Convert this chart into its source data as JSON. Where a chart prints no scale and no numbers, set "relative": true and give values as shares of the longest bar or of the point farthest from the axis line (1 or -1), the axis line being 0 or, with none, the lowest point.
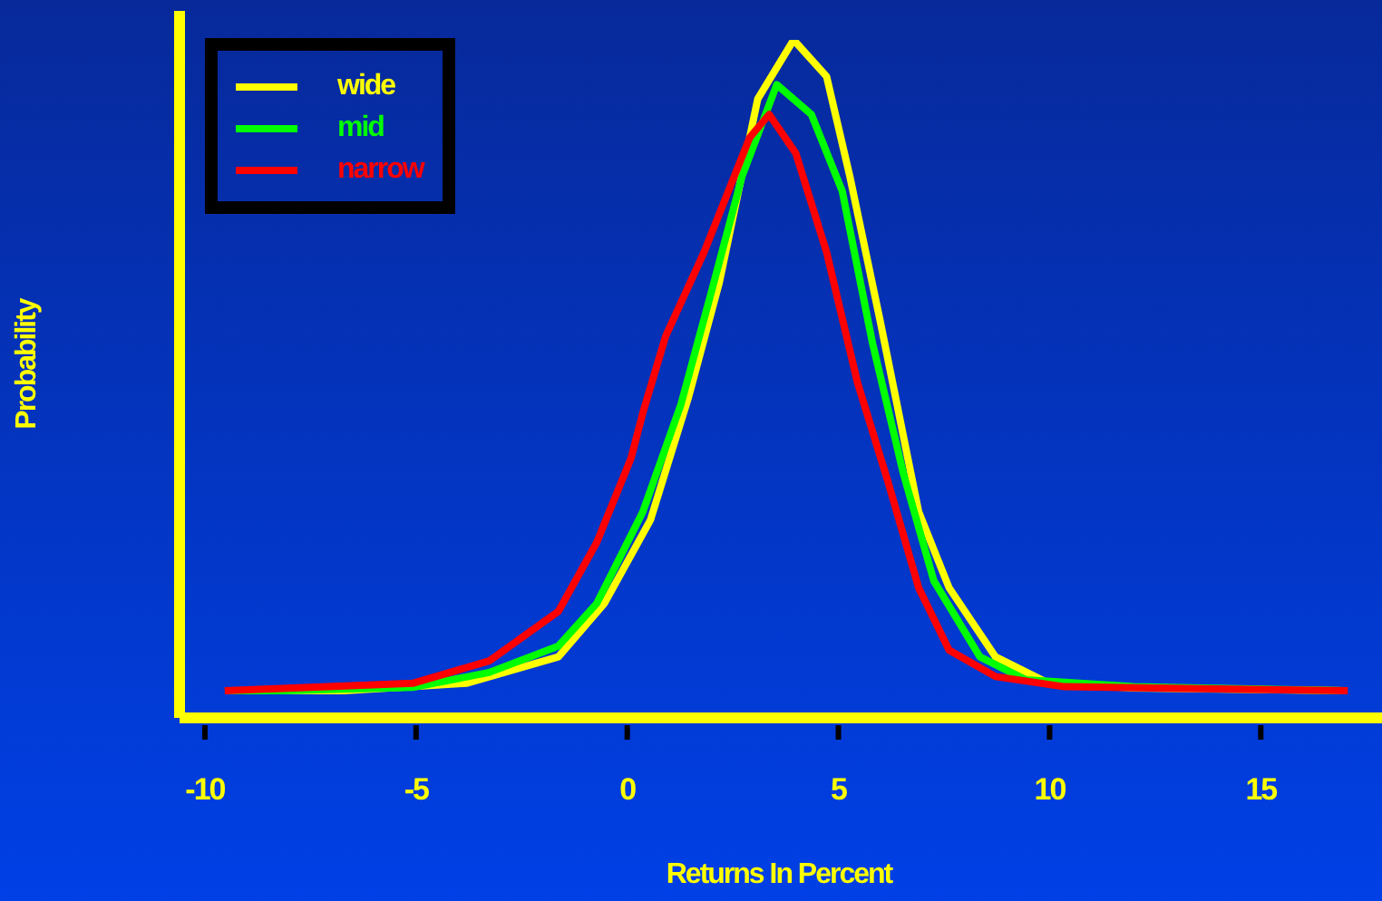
{
  "chart_data": {
    "type": "line",
    "relative": true,
    "xlabel": "Returns In Percent",
    "ylabel": "Probability",
    "xlim": [
      -10.6,
      18.3
    ],
    "xticks": [
      -10,
      -5,
      0,
      5,
      10,
      15
    ],
    "legend": "top left",
    "series": [
      {
        "name": "wide",
        "color": "#ffff00",
        "x": [
          -9.5,
          -6.71,
          -3.81,
          -1.63,
          -0.54,
          0.55,
          1.45,
          2.18,
          3.09,
          3.94,
          4.72,
          5.27,
          5.99,
          6.9,
          7.62,
          8.72,
          9.98,
          12,
          17
        ],
        "values": [
          0.04,
          0.04,
          0.051,
          0.09,
          0.169,
          0.292,
          0.473,
          0.642,
          0.913,
          1,
          0.946,
          0.799,
          0.585,
          0.304,
          0.192,
          0.09,
          0.051,
          0.044,
          0.04
        ]
      },
      {
        "name": "mid",
        "color": "#00ff00",
        "x": [
          -9.5,
          -8.17,
          -5.08,
          -3.27,
          -1.63,
          -0.72,
          0.37,
          1.27,
          2.0,
          2.72,
          3.54,
          4.36,
          5.09,
          5.81,
          6.54,
          7.26,
          8.35,
          9.44,
          11.98,
          17
        ],
        "values": [
          0.04,
          0.04,
          0.045,
          0.067,
          0.106,
          0.169,
          0.304,
          0.462,
          0.63,
          0.799,
          0.934,
          0.89,
          0.777,
          0.552,
          0.36,
          0.202,
          0.09,
          0.056,
          0.046,
          0.04
        ]
      },
      {
        "name": "narrow",
        "color": "#ff0000",
        "x": [
          -9.53,
          -5.08,
          -3.27,
          -1.63,
          -0.72,
          0.09,
          0.37,
          0.91,
          1.82,
          2.9,
          3.36,
          3.99,
          4.72,
          5.45,
          6.17,
          6.9,
          7.62,
          8.72,
          10.35,
          17.06
        ],
        "values": [
          0.04,
          0.051,
          0.084,
          0.157,
          0.259,
          0.383,
          0.45,
          0.563,
          0.687,
          0.856,
          0.89,
          0.833,
          0.687,
          0.495,
          0.349,
          0.192,
          0.1,
          0.061,
          0.046,
          0.04
        ]
      }
    ]
  }
}
